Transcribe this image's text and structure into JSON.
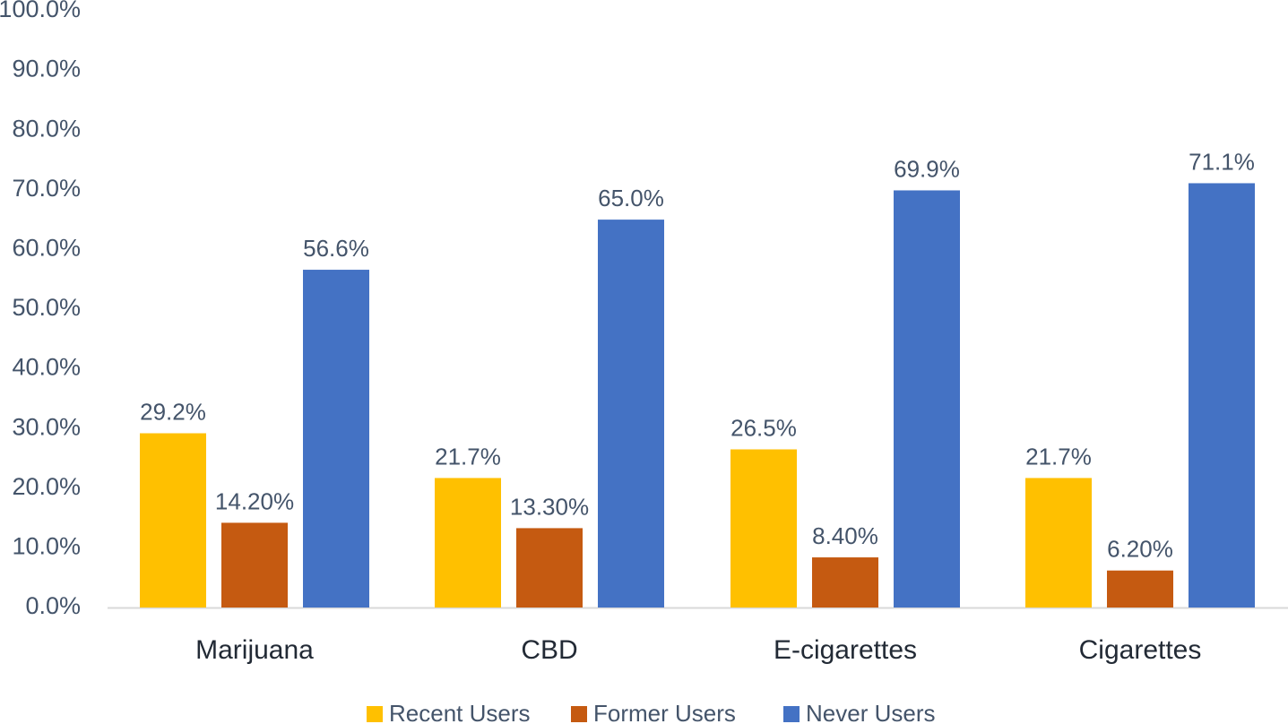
{
  "chart_data": {
    "type": "bar",
    "title": "",
    "xlabel": "",
    "ylabel": "",
    "ylim": [
      0,
      100
    ],
    "y_ticks": [
      "0.0%",
      "10.0%",
      "20.0%",
      "30.0%",
      "40.0%",
      "50.0%",
      "60.0%",
      "70.0%",
      "80.0%",
      "90.0%",
      "100.0%"
    ],
    "grid": false,
    "legend_position": "bottom",
    "categories": [
      "Marijuana",
      "CBD",
      "E-cigarettes",
      "Cigarettes"
    ],
    "series": [
      {
        "name": "Recent Users",
        "color": "#FFC000",
        "values": [
          29.2,
          21.7,
          26.5,
          21.7
        ],
        "labels": [
          "29.2%",
          "21.7%",
          "26.5%",
          "21.7%"
        ]
      },
      {
        "name": "Former Users",
        "color": "#C55A11",
        "values": [
          14.2,
          13.3,
          8.4,
          6.2
        ],
        "labels": [
          "14.20%",
          "13.30%",
          "8.40%",
          "6.20%"
        ]
      },
      {
        "name": "Never Users",
        "color": "#4472C4",
        "values": [
          56.6,
          65.0,
          69.9,
          71.1
        ],
        "labels": [
          "56.6%",
          "65.0%",
          "69.9%",
          "71.1%"
        ]
      }
    ]
  }
}
